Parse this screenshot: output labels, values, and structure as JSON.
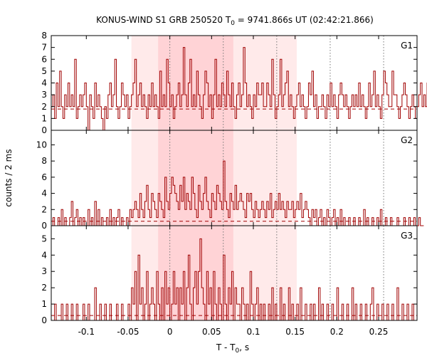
{
  "chart_data": {
    "type": "histogram-step",
    "title_prefix": "KONUS-WIND S1 GRB 250520 T",
    "title_sub": "0",
    "title_suffix": " = 9741.866s UT (02:42:21.866)",
    "xlabel_prefix": "T - T",
    "xlabel_sub": "0",
    "xlabel_suffix": ", s",
    "ylabel": "counts / 2 ms",
    "xlim": [
      -0.142,
      0.296
    ],
    "bin_width": 0.002,
    "x_ticks": [
      -0.1,
      -0.05,
      0,
      0.05,
      0.1,
      0.15,
      0.2,
      0.25
    ],
    "x_tick_labels": [
      "-0.1",
      "-0.05",
      "0",
      "0.05",
      "0.1",
      "0.15",
      "0.2",
      "0.25"
    ],
    "shaded_regions": [
      {
        "from": -0.046,
        "to": 0.152,
        "color": "#ffeaea"
      },
      {
        "from": -0.014,
        "to": 0.076,
        "color": "#ffd3d6"
      }
    ],
    "vertical_lines": [
      0,
      0.064,
      0.128,
      0.192,
      0.256
    ],
    "line_color": "#a00000",
    "panels": [
      {
        "name": "G1",
        "ylim": [
          0,
          8
        ],
        "y_ticks": [
          0,
          1,
          2,
          3,
          4,
          5,
          6,
          7,
          8
        ],
        "background": 1.8,
        "counts": [
          2,
          3,
          1,
          4,
          2,
          5,
          2,
          1,
          3,
          2,
          4,
          2,
          3,
          2,
          6,
          1,
          2,
          3,
          2,
          3,
          4,
          2,
          0,
          3,
          2,
          1,
          4,
          2,
          3,
          2,
          1,
          0,
          2,
          1,
          3,
          4,
          2,
          3,
          6,
          2,
          1,
          2,
          4,
          3,
          2,
          3,
          1,
          2,
          3,
          4,
          6,
          2,
          3,
          4,
          2,
          3,
          2,
          1,
          3,
          2,
          4,
          2,
          3,
          2,
          1,
          5,
          2,
          3,
          2,
          6,
          4,
          2,
          3,
          1,
          2,
          3,
          4,
          2,
          3,
          7,
          3,
          2,
          4,
          6,
          2,
          3,
          2,
          5,
          3,
          2,
          1,
          3,
          5,
          4,
          2,
          3,
          1,
          3,
          6,
          2,
          3,
          2,
          4,
          3,
          2,
          5,
          3,
          2,
          4,
          2,
          1,
          3,
          4,
          2,
          3,
          7,
          4,
          2,
          3,
          2,
          1,
          3,
          2,
          4,
          3,
          3,
          4,
          2,
          2,
          4,
          3,
          2,
          6,
          3,
          1,
          2,
          3,
          6,
          2,
          3,
          4,
          5,
          2,
          3,
          2,
          1,
          2,
          3,
          4,
          2,
          3,
          2,
          1,
          2,
          4,
          3,
          5,
          2,
          3,
          1,
          2,
          2,
          3,
          2,
          1,
          3,
          2,
          4,
          2,
          3,
          2,
          1,
          3,
          4,
          3,
          2,
          3,
          2,
          1,
          2,
          3,
          2,
          3,
          2,
          4,
          2,
          3,
          2,
          1,
          2,
          4,
          2,
          3,
          5,
          2,
          3,
          2,
          1,
          3,
          5,
          4,
          3,
          2,
          2,
          5,
          3,
          3,
          2,
          1,
          2,
          3,
          4,
          3,
          2,
          1,
          2,
          3,
          2,
          1,
          2,
          3,
          4,
          2,
          3,
          2,
          4
        ]
      },
      {
        "name": "G2",
        "ylim": [
          0,
          11.8
        ],
        "y_ticks": [
          0,
          2,
          4,
          6,
          8,
          10
        ],
        "background": 0.55,
        "counts": [
          0,
          1,
          0,
          0,
          1,
          0,
          2,
          0,
          1,
          0,
          0,
          1,
          3,
          0,
          1,
          2,
          0,
          1,
          0,
          1,
          0,
          0,
          2,
          0,
          1,
          0,
          3,
          0,
          2,
          0,
          1,
          0,
          0,
          1,
          0,
          2,
          0,
          1,
          0,
          1,
          2,
          0,
          1,
          0,
          0,
          1,
          0,
          2,
          1,
          2,
          3,
          2,
          1,
          4,
          2,
          1,
          3,
          5,
          2,
          1,
          4,
          3,
          2,
          1,
          4,
          3,
          2,
          1,
          6,
          3,
          2,
          4,
          6,
          5,
          4,
          3,
          2,
          5,
          3,
          6,
          2,
          4,
          3,
          2,
          6,
          4,
          2,
          1,
          5,
          3,
          2,
          4,
          6,
          3,
          2,
          1,
          4,
          3,
          2,
          5,
          4,
          3,
          2,
          8,
          3,
          2,
          1,
          4,
          3,
          2,
          5,
          2,
          3,
          4,
          3,
          2,
          1,
          4,
          3,
          4,
          2,
          1,
          3,
          2,
          1,
          2,
          3,
          2,
          1,
          3,
          2,
          4,
          1,
          2,
          3,
          2,
          4,
          2,
          3,
          2,
          1,
          3,
          2,
          2,
          3,
          1,
          2,
          3,
          2,
          4,
          1,
          2,
          3,
          2,
          1,
          0,
          2,
          1,
          2,
          0,
          1,
          2,
          0,
          1,
          0,
          2,
          1,
          0,
          1,
          2,
          0,
          1,
          0,
          2,
          0,
          1,
          0,
          0,
          1,
          0,
          0,
          1,
          0,
          0,
          1,
          0,
          0,
          2,
          0,
          1,
          0,
          0,
          1,
          0,
          0,
          1,
          0,
          2,
          0,
          0,
          1,
          0,
          0,
          1,
          0,
          0,
          0,
          1,
          0,
          0,
          0,
          1,
          0,
          0,
          1,
          0,
          0,
          1,
          0,
          0,
          1,
          0,
          0
        ]
      },
      {
        "name": "G3",
        "ylim": [
          0,
          5.8
        ],
        "y_ticks": [
          0,
          1,
          2,
          3,
          4,
          5
        ],
        "background": 0.3,
        "counts": [
          0,
          0,
          1,
          0,
          0,
          0,
          1,
          0,
          0,
          1,
          0,
          0,
          1,
          0,
          0,
          1,
          0,
          0,
          0,
          1,
          0,
          0,
          1,
          0,
          0,
          0,
          2,
          0,
          0,
          1,
          0,
          0,
          1,
          0,
          0,
          1,
          0,
          0,
          0,
          1,
          0,
          0,
          1,
          0,
          0,
          0,
          1,
          0,
          2,
          1,
          3,
          0,
          4,
          1,
          2,
          0,
          1,
          3,
          0,
          1,
          2,
          1,
          0,
          3,
          1,
          0,
          2,
          0,
          3,
          1,
          2,
          0,
          1,
          3,
          1,
          2,
          0,
          2,
          1,
          3,
          0,
          2,
          4,
          1,
          0,
          2,
          3,
          1,
          3,
          5,
          2,
          1,
          0,
          3,
          1,
          2,
          0,
          3,
          1,
          0,
          2,
          1,
          0,
          4,
          1,
          0,
          2,
          1,
          3,
          0,
          2,
          1,
          1,
          0,
          2,
          1,
          0,
          1,
          0,
          3,
          1,
          0,
          1,
          2,
          0,
          1,
          0,
          1,
          0,
          0,
          1,
          0,
          2,
          0,
          1,
          0,
          0,
          2,
          0,
          1,
          0,
          0,
          2,
          0,
          1,
          0,
          0,
          1,
          0,
          2,
          0,
          0,
          1,
          0,
          0,
          1,
          0,
          1,
          0,
          0,
          2,
          0,
          1,
          0,
          0,
          1,
          0,
          0,
          1,
          0,
          0,
          2,
          0,
          0,
          1,
          0,
          0,
          1,
          0,
          0,
          2,
          0,
          1,
          0,
          0,
          1,
          0,
          0,
          1,
          0,
          0,
          1,
          2,
          0,
          0,
          1,
          0,
          0,
          1,
          0,
          0,
          1,
          0,
          0,
          1,
          0,
          0,
          2,
          0,
          0,
          1,
          0,
          0,
          1,
          0,
          0,
          1,
          0,
          0
        ]
      }
    ]
  }
}
